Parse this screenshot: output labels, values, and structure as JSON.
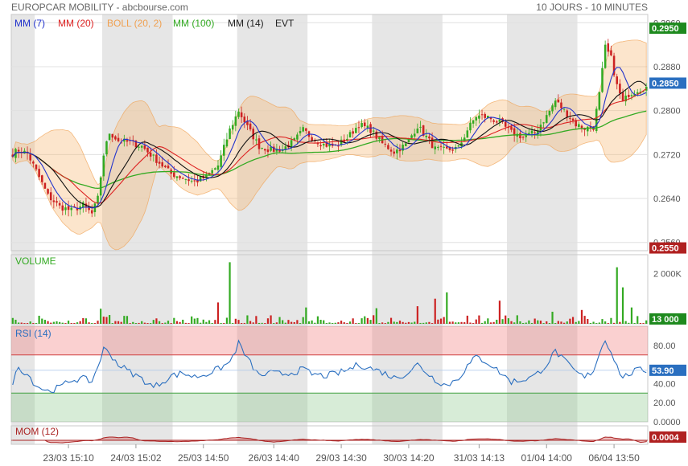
{
  "header": {
    "title": "EUROPCAR MOBILITY - abcbourse.com",
    "period": "10 JOURS - 10 MINUTES"
  },
  "colors": {
    "mm7": "#2233cc",
    "mm20": "#dd2222",
    "boll": "#f0a050",
    "mm100": "#33aa22",
    "mm14": "#111111",
    "up": "#33aa22",
    "down": "#cc2222",
    "rsi": "#2a6fc0",
    "mom": "#aa2222"
  },
  "chart_data": [
    {
      "panel": "price",
      "type": "candlestick",
      "legend": [
        {
          "label": "MM (7)",
          "color": "#2233cc"
        },
        {
          "label": "MM (20)",
          "color": "#dd2222"
        },
        {
          "label": "BOLL (20, 2)",
          "color": "#f0a050"
        },
        {
          "label": "MM (100)",
          "color": "#33aa22"
        },
        {
          "label": "MM (14)",
          "color": "#222222"
        },
        {
          "label": "EVT",
          "color": "#222222"
        }
      ],
      "ylim": [
        0.2545,
        0.2975
      ],
      "y_ticks": [
        "0.2960",
        "0.2880",
        "0.2800",
        "0.2720",
        "0.2640",
        "0.2560"
      ],
      "y_tick_values": [
        0.296,
        0.288,
        0.28,
        0.272,
        0.264,
        0.256
      ],
      "price_tags": [
        {
          "label": "0.2950",
          "value": 0.295,
          "color": "#1e8a1e"
        },
        {
          "label": "0.2850",
          "value": 0.285,
          "color": "#2a6fc0"
        },
        {
          "label": "0.2550",
          "value": 0.255,
          "color": "#b02020"
        }
      ],
      "anchors": [
        [
          0,
          0.2722
        ],
        [
          2,
          0.2728
        ],
        [
          5,
          0.2722
        ],
        [
          8,
          0.269
        ],
        [
          12,
          0.2645
        ],
        [
          16,
          0.2625
        ],
        [
          20,
          0.2618
        ],
        [
          24,
          0.2628
        ],
        [
          27,
          0.2612
        ],
        [
          29,
          0.264
        ],
        [
          31,
          0.272
        ],
        [
          33,
          0.276
        ],
        [
          36,
          0.2745
        ],
        [
          40,
          0.2742
        ],
        [
          44,
          0.2735
        ],
        [
          48,
          0.2715
        ],
        [
          51,
          0.27
        ],
        [
          54,
          0.2685
        ],
        [
          58,
          0.2678
        ],
        [
          62,
          0.267
        ],
        [
          66,
          0.268
        ],
        [
          70,
          0.27
        ],
        [
          74,
          0.2765
        ],
        [
          77,
          0.28
        ],
        [
          80,
          0.277
        ],
        [
          84,
          0.2735
        ],
        [
          88,
          0.2728
        ],
        [
          92,
          0.273
        ],
        [
          96,
          0.2745
        ],
        [
          99,
          0.2765
        ],
        [
          102,
          0.275
        ],
        [
          106,
          0.2738
        ],
        [
          110,
          0.2735
        ],
        [
          114,
          0.275
        ],
        [
          118,
          0.2775
        ],
        [
          122,
          0.2765
        ],
        [
          126,
          0.274
        ],
        [
          130,
          0.2725
        ],
        [
          134,
          0.2738
        ],
        [
          138,
          0.2772
        ],
        [
          141,
          0.2752
        ],
        [
          144,
          0.273
        ],
        [
          148,
          0.2728
        ],
        [
          152,
          0.2732
        ],
        [
          155,
          0.2765
        ],
        [
          158,
          0.279
        ],
        [
          162,
          0.2788
        ],
        [
          166,
          0.2778
        ],
        [
          170,
          0.276
        ],
        [
          174,
          0.2752
        ],
        [
          178,
          0.276
        ],
        [
          182,
          0.279
        ],
        [
          185,
          0.2818
        ],
        [
          188,
          0.28
        ],
        [
          192,
          0.2775
        ],
        [
          195,
          0.2768
        ],
        [
          198,
          0.277
        ],
        [
          200,
          0.283
        ],
        [
          202,
          0.2915
        ],
        [
          204,
          0.2895
        ],
        [
          206,
          0.2845
        ],
        [
          208,
          0.2815
        ],
        [
          210,
          0.283
        ],
        [
          213,
          0.2838
        ],
        [
          216,
          0.2842
        ]
      ]
    },
    {
      "panel": "volume",
      "type": "bar",
      "title": "VOLUME",
      "y_ticks": [
        "2 000K"
      ],
      "y_tick_values": [
        2000
      ],
      "ylim": [
        0,
        2750
      ],
      "last_tag": "13 000",
      "spikes": [
        [
          30,
          600
        ],
        [
          33,
          350
        ],
        [
          70,
          850
        ],
        [
          74,
          2450
        ],
        [
          100,
          650
        ],
        [
          124,
          620
        ],
        [
          138,
          700
        ],
        [
          144,
          1000
        ],
        [
          148,
          1250
        ],
        [
          166,
          920
        ],
        [
          184,
          480
        ],
        [
          194,
          550
        ],
        [
          206,
          2250
        ],
        [
          208,
          1450
        ],
        [
          211,
          650
        ]
      ]
    },
    {
      "panel": "rsi",
      "type": "line",
      "title": "RSI (14)",
      "ylim": [
        0,
        100
      ],
      "y_ticks": [
        "80.00",
        "40.00",
        "20.00",
        "0.0000"
      ],
      "y_tick_values": [
        80,
        40,
        20,
        0
      ],
      "overbought": 70,
      "oversold": 30,
      "last_value": 53.9,
      "last_tag": "53.90",
      "anchors": [
        [
          0,
          42
        ],
        [
          2,
          57
        ],
        [
          5,
          50
        ],
        [
          8,
          38
        ],
        [
          12,
          32
        ],
        [
          16,
          36
        ],
        [
          20,
          44
        ],
        [
          24,
          45
        ],
        [
          27,
          42
        ],
        [
          29,
          58
        ],
        [
          31,
          76
        ],
        [
          33,
          72
        ],
        [
          36,
          60
        ],
        [
          40,
          52
        ],
        [
          44,
          45
        ],
        [
          48,
          36
        ],
        [
          51,
          42
        ],
        [
          54,
          48
        ],
        [
          58,
          51
        ],
        [
          62,
          47
        ],
        [
          66,
          50
        ],
        [
          70,
          55
        ],
        [
          74,
          62
        ],
        [
          77,
          82
        ],
        [
          80,
          66
        ],
        [
          84,
          48
        ],
        [
          88,
          51
        ],
        [
          92,
          50
        ],
        [
          96,
          52
        ],
        [
          99,
          55
        ],
        [
          102,
          50
        ],
        [
          106,
          48
        ],
        [
          110,
          50
        ],
        [
          114,
          54
        ],
        [
          118,
          60
        ],
        [
          122,
          56
        ],
        [
          126,
          52
        ],
        [
          130,
          46
        ],
        [
          134,
          50
        ],
        [
          138,
          60
        ],
        [
          141,
          52
        ],
        [
          144,
          44
        ],
        [
          148,
          38
        ],
        [
          152,
          46
        ],
        [
          155,
          58
        ],
        [
          158,
          68
        ],
        [
          162,
          62
        ],
        [
          166,
          52
        ],
        [
          170,
          42
        ],
        [
          174,
          44
        ],
        [
          178,
          48
        ],
        [
          182,
          60
        ],
        [
          185,
          74
        ],
        [
          188,
          64
        ],
        [
          192,
          52
        ],
        [
          195,
          46
        ],
        [
          198,
          54
        ],
        [
          200,
          72
        ],
        [
          202,
          86
        ],
        [
          204,
          74
        ],
        [
          206,
          58
        ],
        [
          208,
          46
        ],
        [
          210,
          50
        ],
        [
          213,
          54
        ],
        [
          216,
          53.9
        ]
      ]
    },
    {
      "panel": "momentum",
      "type": "area",
      "title": "MOM (12)",
      "last_tag": "0.0004"
    }
  ],
  "x_axis": {
    "labels": [
      "23/03 15:10",
      "24/03 15:02",
      "25/03 14:50",
      "26/03 14:40",
      "29/03 14:30",
      "30/03 14:20",
      "31/03 14:13",
      "01/04 14:00",
      "06/04 13:50"
    ],
    "label_bars": [
      19,
      42,
      65,
      89,
      112,
      135,
      159,
      182,
      205
    ],
    "shaded_bar_ranges": [
      [
        0,
        7
      ],
      [
        31,
        54
      ],
      [
        77,
        100
      ],
      [
        123,
        146
      ],
      [
        169,
        192
      ]
    ]
  }
}
